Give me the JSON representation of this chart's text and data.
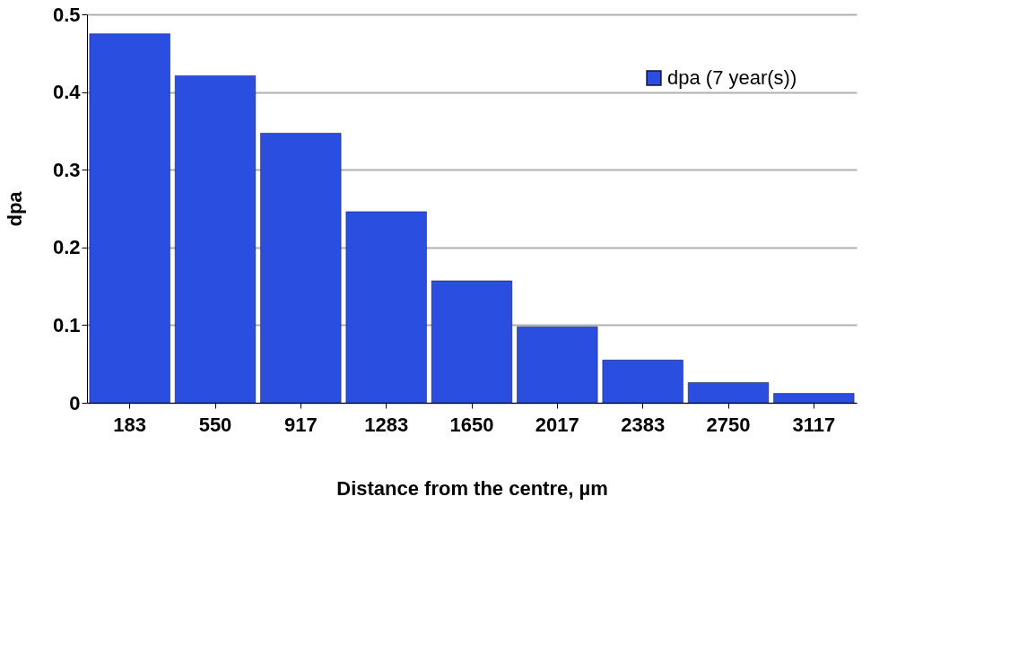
{
  "chart_data": {
    "type": "bar",
    "xlabel": "Distance from the centre, µm",
    "ylabel": "dpa",
    "categories": [
      "183",
      "550",
      "917",
      "1283",
      "1650",
      "2017",
      "2383",
      "2750",
      "3117"
    ],
    "series": [
      {
        "name": "dpa  (7 year(s))",
        "color": "#2a4fe0",
        "values": [
          0.475,
          0.421,
          0.347,
          0.246,
          0.157,
          0.098,
          0.055,
          0.026,
          0.012
        ]
      }
    ],
    "ylim": [
      0,
      0.5
    ],
    "yticks": [
      0,
      0.1,
      0.2,
      0.3,
      0.4,
      0.5
    ],
    "grid": "y",
    "legend": "top right"
  }
}
